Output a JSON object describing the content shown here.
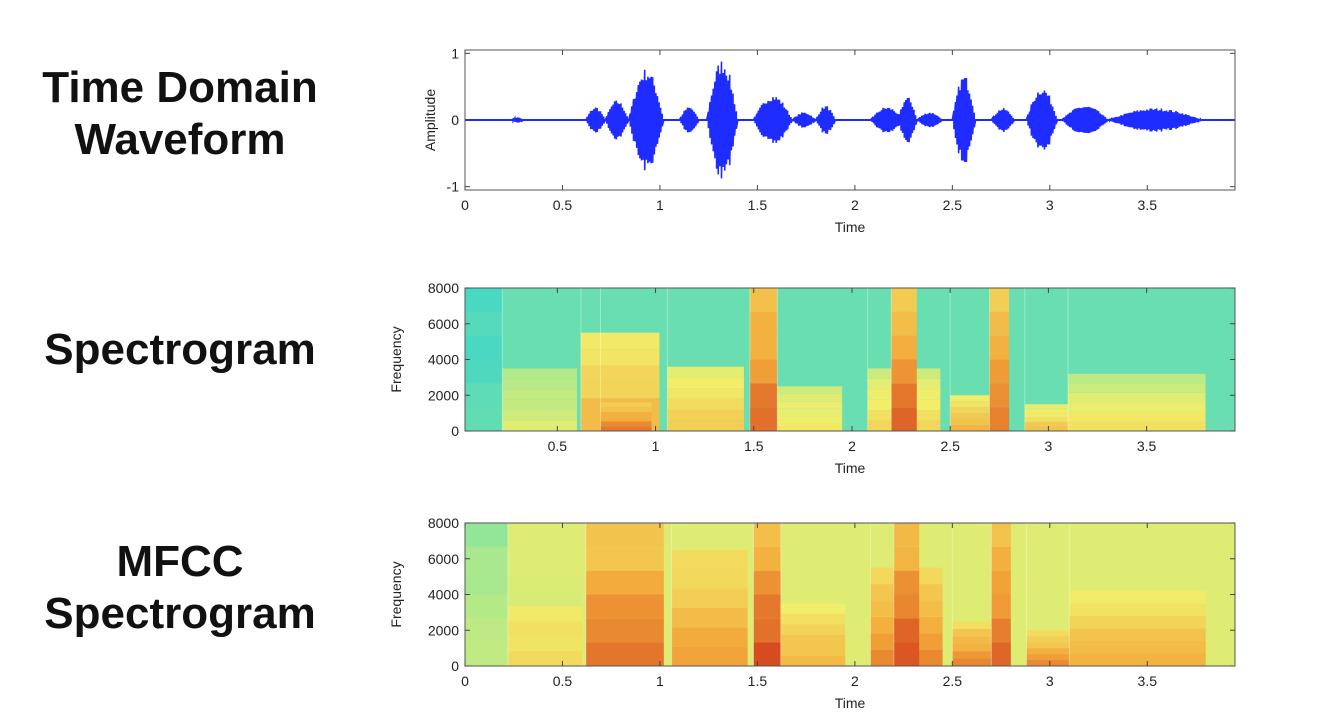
{
  "panels": [
    {
      "label_lines": [
        "Time Domain",
        "Waveform"
      ],
      "chart": {
        "type": "line",
        "title": "",
        "xlabel": "Time",
        "ylabel": "Amplitude",
        "xlim": [
          0,
          3.95
        ],
        "ylim": [
          -1.05,
          1.05
        ],
        "x_ticks": [
          0,
          0.5,
          1,
          1.5,
          2,
          2.5,
          3,
          3.5
        ],
        "x_tick_labels": [
          "0",
          "0.5",
          "1",
          "1.5",
          "2",
          "2.5",
          "3",
          "3.5"
        ],
        "y_ticks": [
          -1,
          0,
          1
        ],
        "y_tick_labels": [
          "-1",
          "0",
          "1"
        ],
        "line_color": "#1f2cff",
        "segments": [
          {
            "start": 0.24,
            "end": 0.3,
            "amp": 0.04
          },
          {
            "start": 0.62,
            "end": 0.72,
            "amp": 0.2
          },
          {
            "start": 0.72,
            "end": 0.84,
            "amp": 0.3
          },
          {
            "start": 0.84,
            "end": 1.02,
            "amp": 0.78
          },
          {
            "start": 1.1,
            "end": 1.2,
            "amp": 0.2
          },
          {
            "start": 1.24,
            "end": 1.4,
            "amp": 0.92
          },
          {
            "start": 1.48,
            "end": 1.68,
            "amp": 0.38
          },
          {
            "start": 1.68,
            "end": 1.8,
            "amp": 0.12
          },
          {
            "start": 1.8,
            "end": 1.9,
            "amp": 0.22
          },
          {
            "start": 2.08,
            "end": 2.25,
            "amp": 0.2
          },
          {
            "start": 2.22,
            "end": 2.32,
            "amp": 0.35
          },
          {
            "start": 2.32,
            "end": 2.45,
            "amp": 0.12
          },
          {
            "start": 2.5,
            "end": 2.62,
            "amp": 0.68
          },
          {
            "start": 2.7,
            "end": 2.82,
            "amp": 0.18
          },
          {
            "start": 2.88,
            "end": 3.04,
            "amp": 0.5
          },
          {
            "start": 3.06,
            "end": 3.3,
            "amp": 0.22
          },
          {
            "start": 3.3,
            "end": 3.78,
            "amp": 0.18
          }
        ]
      }
    },
    {
      "label_lines": [
        "Spectrogram"
      ],
      "chart": {
        "type": "heatmap",
        "title": "",
        "xlabel": "Time",
        "ylabel": "Frequency",
        "xlim": [
          0.03,
          3.95
        ],
        "ylim": [
          0,
          8000
        ],
        "x_ticks": [
          0.5,
          1,
          1.5,
          2,
          2.5,
          3,
          3.5
        ],
        "x_tick_labels": [
          "0.5",
          "1",
          "1.5",
          "2",
          "2.5",
          "3",
          "3.5"
        ],
        "y_ticks": [
          0,
          2000,
          4000,
          6000,
          8000
        ],
        "y_tick_labels": [
          "0",
          "2000",
          "4000",
          "6000",
          "8000"
        ],
        "colormap": [
          "#2fd3d0",
          "#8fe69a",
          "#f2ee6a",
          "#f3a93a",
          "#d23c1c"
        ],
        "background_level": 0.15,
        "regions": [
          {
            "t0": 0.03,
            "t1": 0.22,
            "fmax": 8000,
            "level": 0.12
          },
          {
            "t0": 0.22,
            "t1": 0.6,
            "fmax": 3500,
            "level": 0.45
          },
          {
            "t0": 0.62,
            "t1": 1.02,
            "fmax": 5500,
            "level": 0.7
          },
          {
            "t0": 0.72,
            "t1": 0.98,
            "fmax": 1600,
            "level": 0.85
          },
          {
            "t0": 1.06,
            "t1": 1.45,
            "fmax": 3600,
            "level": 0.62
          },
          {
            "t0": 1.48,
            "t1": 1.62,
            "fmax": 8000,
            "level": 0.9
          },
          {
            "t0": 1.62,
            "t1": 1.95,
            "fmax": 2500,
            "level": 0.55
          },
          {
            "t0": 2.08,
            "t1": 2.45,
            "fmax": 3500,
            "level": 0.6
          },
          {
            "t0": 2.2,
            "t1": 2.33,
            "fmax": 8000,
            "level": 0.92
          },
          {
            "t0": 2.5,
            "t1": 2.7,
            "fmax": 2000,
            "level": 0.7
          },
          {
            "t0": 2.7,
            "t1": 2.8,
            "fmax": 8000,
            "level": 0.85
          },
          {
            "t0": 2.88,
            "t1": 3.1,
            "fmax": 1500,
            "level": 0.65
          },
          {
            "t0": 3.1,
            "t1": 3.8,
            "fmax": 3200,
            "level": 0.55
          }
        ]
      }
    },
    {
      "label_lines": [
        "MFCC",
        "Spectrogram"
      ],
      "chart": {
        "type": "heatmap",
        "title": "",
        "xlabel": "Time",
        "ylabel": "Frequency",
        "xlim": [
          0,
          3.95
        ],
        "ylim": [
          0,
          8000
        ],
        "x_ticks": [
          0,
          0.5,
          1,
          1.5,
          2,
          2.5,
          3,
          3.5
        ],
        "x_tick_labels": [
          "0",
          "0.5",
          "1",
          "1.5",
          "2",
          "2.5",
          "3",
          "3.5"
        ],
        "y_ticks": [
          0,
          2000,
          4000,
          6000,
          8000
        ],
        "y_tick_labels": [
          "0",
          "2000",
          "4000",
          "6000",
          "8000"
        ],
        "colormap": [
          "#2fd3d0",
          "#8fe69a",
          "#f2ee6a",
          "#f3a93a",
          "#d23c1c"
        ],
        "background_level": 0.45,
        "regions": [
          {
            "t0": 0.0,
            "t1": 0.22,
            "fmax": 8000,
            "level": 0.4
          },
          {
            "t0": 0.22,
            "t1": 0.6,
            "fmax": 5000,
            "level": 0.6
          },
          {
            "t0": 0.62,
            "t1": 1.02,
            "fmax": 8000,
            "level": 0.88
          },
          {
            "t0": 1.06,
            "t1": 1.45,
            "fmax": 6500,
            "level": 0.78
          },
          {
            "t0": 1.48,
            "t1": 1.62,
            "fmax": 8000,
            "level": 0.95
          },
          {
            "t0": 1.62,
            "t1": 1.95,
            "fmax": 3500,
            "level": 0.7
          },
          {
            "t0": 2.08,
            "t1": 2.45,
            "fmax": 5500,
            "level": 0.8
          },
          {
            "t0": 2.2,
            "t1": 2.33,
            "fmax": 8000,
            "level": 0.95
          },
          {
            "t0": 2.5,
            "t1": 2.7,
            "fmax": 2500,
            "level": 0.82
          },
          {
            "t0": 2.7,
            "t1": 2.8,
            "fmax": 8000,
            "level": 0.92
          },
          {
            "t0": 2.88,
            "t1": 3.1,
            "fmax": 2000,
            "level": 0.8
          },
          {
            "t0": 3.1,
            "t1": 3.8,
            "fmax": 4200,
            "level": 0.72
          }
        ]
      }
    }
  ]
}
